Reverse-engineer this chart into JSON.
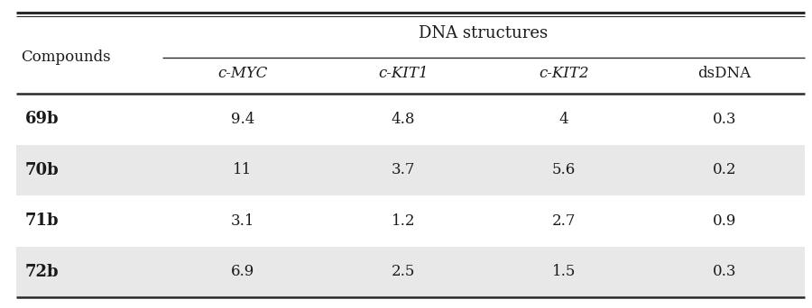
{
  "title": "DNA structures",
  "col_header_left": "Compounds",
  "col_headers": [
    "c-MYC",
    "c-KIT1",
    "c-KIT2",
    "dsDNA"
  ],
  "col_headers_italic": [
    true,
    true,
    true,
    false
  ],
  "rows": [
    {
      "compound": "69b",
      "values": [
        "9.4",
        "4.8",
        "4",
        "0.3"
      ],
      "shaded": false
    },
    {
      "compound": "70b",
      "values": [
        "11",
        "3.7",
        "5.6",
        "0.2"
      ],
      "shaded": true
    },
    {
      "compound": "71b",
      "values": [
        "3.1",
        "1.2",
        "2.7",
        "0.9"
      ],
      "shaded": false
    },
    {
      "compound": "72b",
      "values": [
        "6.9",
        "2.5",
        "1.5",
        "0.3"
      ],
      "shaded": true
    }
  ],
  "shaded_color": "#e8e8e8",
  "bg_color": "#ffffff",
  "text_color": "#1a1a1a",
  "line_color": "#2a2a2a",
  "font_size_title": 13,
  "font_size_header": 12,
  "font_size_data": 12,
  "font_size_compound": 13,
  "figwidth": 9.0,
  "figheight": 3.42,
  "dpi": 100
}
